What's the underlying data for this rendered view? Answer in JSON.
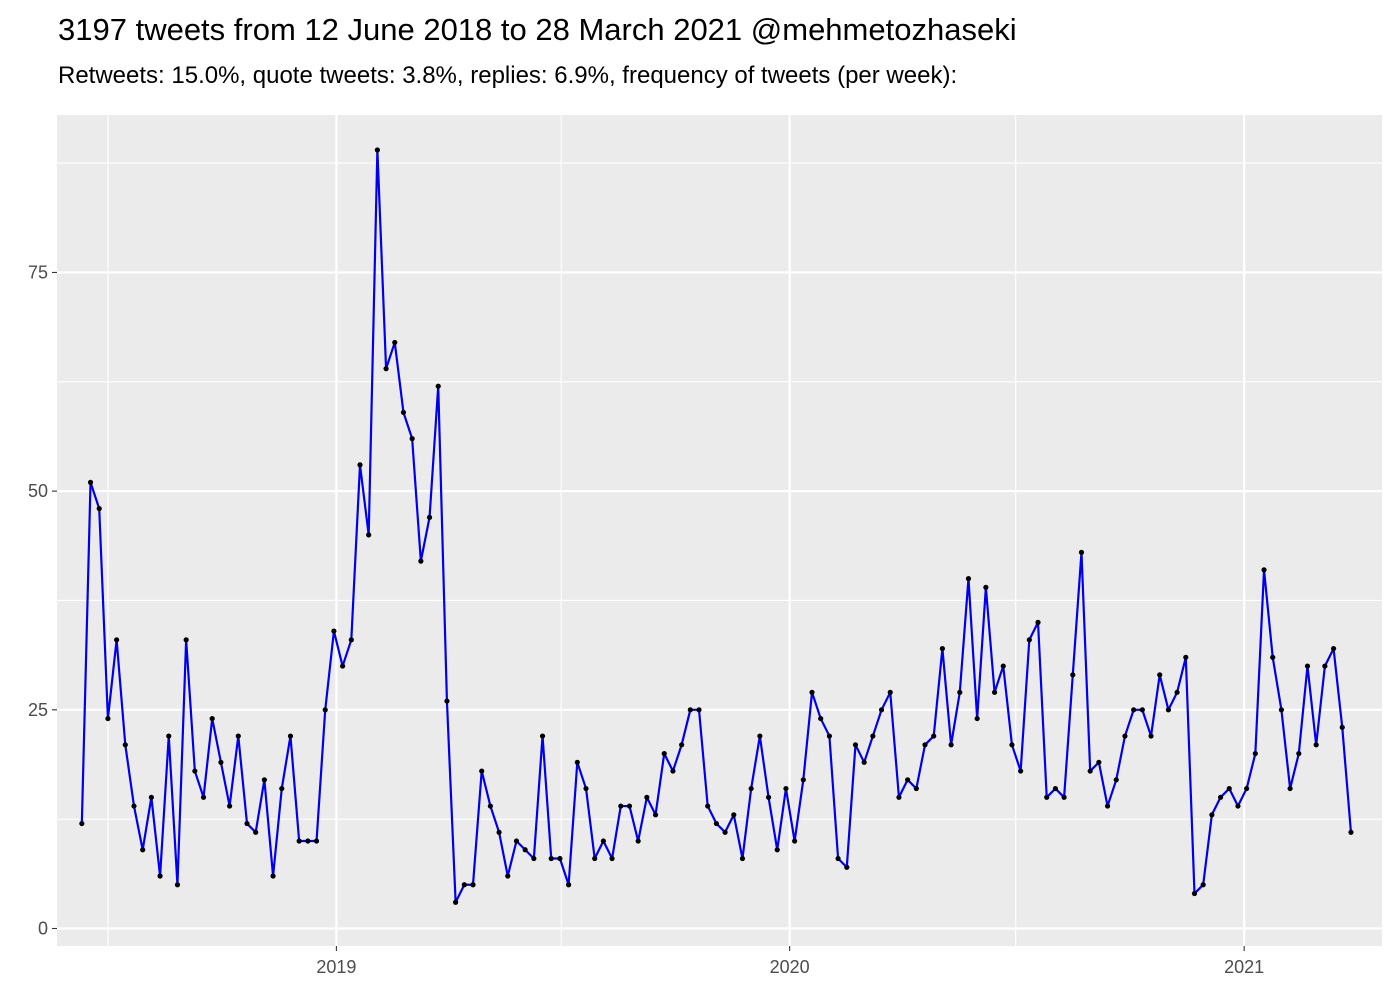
{
  "chart_data": {
    "type": "line",
    "title": "3197 tweets from 12 June 2018 to 28 March 2021 @mehmetozhaseki",
    "subtitle": "Retweets: 15.0%, quote tweets: 3.8%, replies: 6.9%, frequency of tweets (per week):",
    "xlabel": "",
    "ylabel": "",
    "x_ticks": [
      "2019",
      "2020",
      "2021"
    ],
    "y_ticks": [
      "0",
      "25",
      "50",
      "75"
    ],
    "xlim": [
      "2018-05-21",
      "2021-04-22"
    ],
    "ylim": [
      -2,
      93
    ],
    "grid": true,
    "legend": "none",
    "line_color": "#0000ee",
    "point_color": "#000000",
    "start_date": "2018-06-10",
    "week_interval_days": 7,
    "series": [
      {
        "values": [
          12,
          51,
          48,
          24,
          33,
          21,
          14,
          9,
          15,
          6,
          22,
          5,
          33,
          18,
          15,
          24,
          19,
          14,
          22,
          12,
          11,
          17,
          6,
          16,
          22,
          10,
          10,
          10,
          25,
          34,
          30,
          33,
          53,
          45,
          89,
          64,
          67,
          59,
          56,
          42,
          47,
          62,
          26,
          3,
          5,
          5,
          18,
          14,
          11,
          6,
          10,
          9,
          8,
          22,
          8,
          8,
          5,
          19,
          16,
          8,
          10,
          8,
          14,
          14,
          10,
          15,
          13,
          20,
          18,
          21,
          25,
          25,
          14,
          12,
          11,
          13,
          8,
          16,
          22,
          15,
          9,
          16,
          10,
          17,
          27,
          24,
          22,
          8,
          7,
          21,
          19,
          22,
          25,
          27,
          15,
          17,
          16,
          21,
          22,
          32,
          21,
          27,
          40,
          24,
          39,
          27,
          30,
          21,
          18,
          33,
          35,
          15,
          16,
          15,
          29,
          43,
          18,
          19,
          14,
          17,
          22,
          25,
          25,
          22,
          29,
          25,
          27,
          31,
          4,
          5,
          13,
          15,
          16,
          14,
          16,
          20,
          41,
          31,
          25,
          16,
          20,
          30,
          21,
          30,
          32,
          23,
          11
        ]
      }
    ]
  }
}
